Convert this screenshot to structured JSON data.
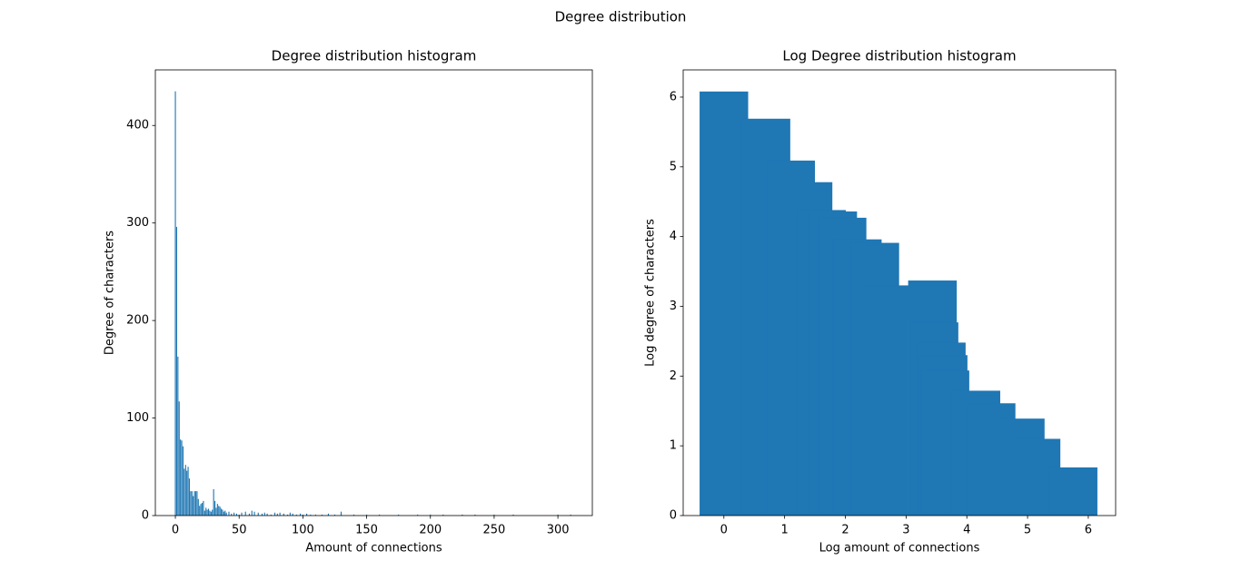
{
  "title": "Degree distribution",
  "chart_data": [
    {
      "type": "bar",
      "title": "Degree distribution histogram",
      "xlabel": "Amount of connections",
      "ylabel": "Degree of characters",
      "color": "#1f77b4",
      "width": 0.8,
      "x": [
        0,
        1,
        2,
        3,
        4,
        5,
        6,
        7,
        8,
        9,
        10,
        11,
        12,
        13,
        14,
        15,
        16,
        17,
        18,
        19,
        20,
        21,
        22,
        23,
        24,
        25,
        26,
        27,
        28,
        29,
        30,
        31,
        32,
        33,
        34,
        35,
        36,
        37,
        38,
        39,
        40,
        42,
        44,
        46,
        48,
        50,
        52,
        55,
        58,
        60,
        62,
        65,
        68,
        70,
        72,
        75,
        78,
        80,
        82,
        85,
        88,
        90,
        92,
        95,
        98,
        100,
        103,
        106,
        110,
        115,
        120,
        125,
        130,
        140,
        150,
        160,
        175,
        190,
        200,
        210,
        225,
        235,
        250,
        265,
        300,
        310
      ],
      "values": [
        435,
        296,
        163,
        117,
        78,
        77,
        71,
        48,
        52,
        46,
        50,
        38,
        25,
        25,
        20,
        25,
        25,
        25,
        17,
        10,
        12,
        13,
        15,
        5,
        8,
        6,
        7,
        5,
        4,
        6,
        27,
        15,
        8,
        12,
        10,
        9,
        7,
        6,
        4,
        5,
        3,
        4,
        2,
        3,
        2,
        1,
        3,
        4,
        2,
        5,
        4,
        3,
        2,
        3,
        2,
        1,
        3,
        2,
        3,
        2,
        1,
        3,
        2,
        1,
        2,
        1,
        2,
        1,
        1,
        1,
        2,
        1,
        4,
        1,
        1,
        1,
        1,
        1,
        1,
        1,
        1,
        1,
        1,
        1,
        1,
        1
      ],
      "xlim": [
        -15.7,
        327
      ],
      "ylim": [
        0,
        457
      ],
      "xticks": [
        0,
        50,
        100,
        150,
        200,
        250,
        300
      ],
      "yticks": [
        0,
        100,
        200,
        300,
        400
      ]
    },
    {
      "type": "bar",
      "title": "Log Degree distribution histogram",
      "xlabel": "Log amount of connections",
      "ylabel": "Log degree of characters",
      "color": "#1f77b4",
      "width": 0.8,
      "x": [
        0,
        0.693,
        1.099,
        1.386,
        1.609,
        1.792,
        1.946,
        2.197,
        2.485,
        2.639,
        3.434,
        3.46,
        3.58,
        3.61,
        3.64,
        4.15,
        4.4,
        4.88,
        5.14,
        5.75
      ],
      "values": [
        6.08,
        5.69,
        5.09,
        4.78,
        4.38,
        4.36,
        4.27,
        3.96,
        3.91,
        3.3,
        3.37,
        2.77,
        2.48,
        2.3,
        2.08,
        1.79,
        1.61,
        1.39,
        1.1,
        0.69
      ],
      "xlim": [
        -0.67,
        6.45
      ],
      "ylim": [
        0,
        6.39
      ],
      "xticks": [
        0,
        1,
        2,
        3,
        4,
        5,
        6
      ],
      "yticks": [
        0,
        1,
        2,
        3,
        4,
        5,
        6
      ]
    }
  ]
}
